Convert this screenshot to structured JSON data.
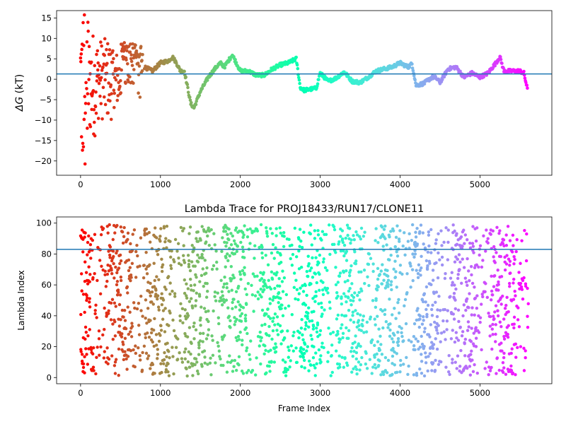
{
  "chart_data": [
    {
      "type": "scatter",
      "title": "",
      "xlabel": "",
      "ylabel": "ΔG (kT)",
      "ylabel_symbol": "ΔG",
      "ylabel_unit": " (kT)",
      "xlim": [
        -300,
        5900
      ],
      "ylim": [
        -23.5,
        16.8
      ],
      "xticks": [
        0,
        1000,
        2000,
        3000,
        4000,
        5000
      ],
      "yticks": [
        -20,
        -15,
        -10,
        -5,
        0,
        5,
        10,
        15
      ],
      "hline": 1.3,
      "hline_color": "#1f77b4",
      "colormap": "rainbow",
      "x_range": [
        0,
        5600
      ],
      "grid": false,
      "legend": "none",
      "trace": [
        [
          800,
          3.0
        ],
        [
          900,
          2.0
        ],
        [
          1000,
          4.0
        ],
        [
          1100,
          4.5
        ],
        [
          1150,
          5.5
        ],
        [
          1200,
          4.0
        ],
        [
          1250,
          2.0
        ],
        [
          1300,
          2.0
        ],
        [
          1380,
          -6.0
        ],
        [
          1420,
          -7.0
        ],
        [
          1500,
          -3.0
        ],
        [
          1600,
          0.5
        ],
        [
          1700,
          3.0
        ],
        [
          1750,
          4.0
        ],
        [
          1800,
          3.0
        ],
        [
          1850,
          4.5
        ],
        [
          1900,
          6.0
        ],
        [
          1950,
          4.0
        ],
        [
          2000,
          2.0
        ],
        [
          2100,
          2.0
        ],
        [
          2200,
          1.0
        ],
        [
          2300,
          1.0
        ],
        [
          2400,
          2.5
        ],
        [
          2500,
          3.5
        ],
        [
          2600,
          4.0
        ],
        [
          2700,
          5.0
        ],
        [
          2750,
          -2.0
        ],
        [
          2800,
          -2.7
        ],
        [
          2950,
          -2.2
        ],
        [
          3000,
          1.5
        ],
        [
          3100,
          -0.5
        ],
        [
          3200,
          0.3
        ],
        [
          3300,
          1.8
        ],
        [
          3400,
          -0.5
        ],
        [
          3500,
          -0.8
        ],
        [
          3600,
          0.5
        ],
        [
          3700,
          2.0
        ],
        [
          3800,
          2.5
        ],
        [
          3900,
          3.0
        ],
        [
          4000,
          4.0
        ],
        [
          4100,
          3.0
        ],
        [
          4150,
          3.8
        ],
        [
          4200,
          -1.5
        ],
        [
          4300,
          -1.0
        ],
        [
          4400,
          0.5
        ],
        [
          4450,
          0.3
        ],
        [
          4500,
          -0.8
        ],
        [
          4600,
          2.5
        ],
        [
          4700,
          3.0
        ],
        [
          4800,
          0.5
        ],
        [
          4900,
          1.5
        ],
        [
          5000,
          0.5
        ],
        [
          5100,
          1.5
        ],
        [
          5200,
          4.0
        ],
        [
          5250,
          5.5
        ],
        [
          5300,
          2.0
        ],
        [
          5400,
          2.0
        ],
        [
          5500,
          2.0
        ],
        [
          5550,
          1.5
        ],
        [
          5600,
          -3.0
        ]
      ]
    },
    {
      "type": "scatter",
      "title": "Lambda Trace for PROJ18433/RUN17/CLONE11",
      "xlabel": "Frame Index",
      "ylabel": "Lambda Index",
      "xlim": [
        -300,
        5900
      ],
      "ylim": [
        -4,
        104
      ],
      "xticks": [
        0,
        1000,
        2000,
        3000,
        4000,
        5000
      ],
      "yticks": [
        0,
        20,
        40,
        60,
        80,
        100
      ],
      "hline": 83,
      "hline_color": "#1f77b4",
      "colormap": "rainbow",
      "x_range": [
        0,
        5600
      ],
      "value_range": [
        1,
        99
      ],
      "grid": false,
      "legend": "none"
    }
  ]
}
